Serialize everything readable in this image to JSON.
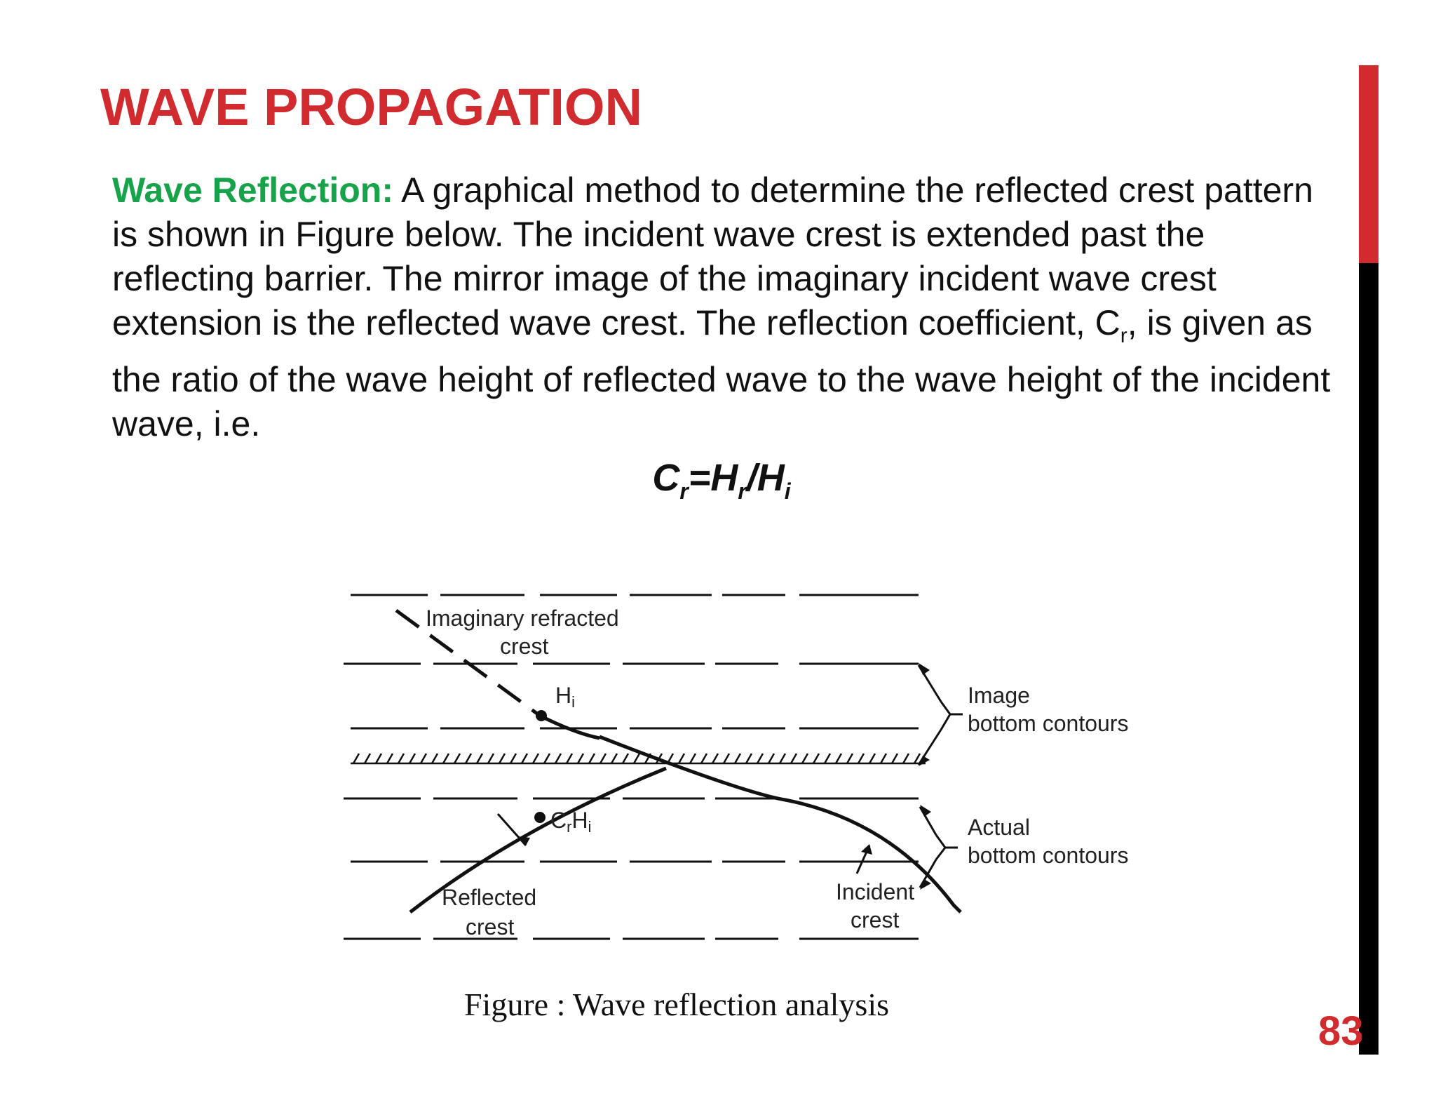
{
  "slide": {
    "title": "WAVE PROPAGATION",
    "page_number": "83",
    "accent_color": "#d12a2f",
    "highlight_color": "#17a34a"
  },
  "body": {
    "lead": "Wave Reflection:",
    "text_1": " A graphical method to determine the reflected crest pattern is shown in Figure below. The incident wave crest is extended past the reflecting barrier. The mirror image of the imaginary incident wave crest extension is the reflected wave crest. The reflection coefficient, C",
    "text_1_sub": "r",
    "text_2": ", is given as the ratio of the wave height of reflected wave to the wave height of the incident wave, i.e."
  },
  "formula": {
    "c": "C",
    "c_sub": "r",
    "eq": "=H",
    "h_sub": "r",
    "slash": "/H",
    "hi_sub": "i"
  },
  "figure": {
    "label_imaginary_1": "Imaginary refracted",
    "label_imaginary_2": "crest",
    "label_hi": "H",
    "label_hi_sub": "i",
    "label_crhi_c": "C",
    "label_crhi_r": "r",
    "label_crhi_h": "H",
    "label_crhi_i": "i",
    "label_image_1": "Image",
    "label_image_2": "bottom contours",
    "label_actual_1": "Actual",
    "label_actual_2": "bottom contours",
    "label_reflected_1": "Reflected",
    "label_reflected_2": "crest",
    "label_incident_1": "Incident",
    "label_incident_2": "crest",
    "caption": "Figure : Wave reflection analysis"
  }
}
